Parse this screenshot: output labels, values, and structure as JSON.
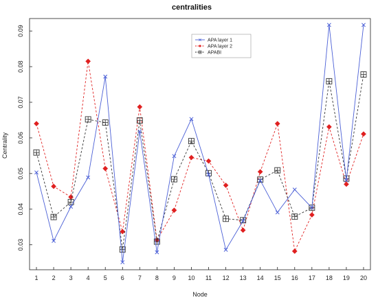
{
  "chart_data": {
    "type": "line",
    "title": "centralities",
    "xlabel": "Node",
    "ylabel": "Centrality",
    "x": [
      1,
      2,
      3,
      4,
      5,
      6,
      7,
      8,
      9,
      10,
      11,
      12,
      13,
      14,
      15,
      16,
      17,
      18,
      19,
      20
    ],
    "x_tick_labels": [
      "1",
      "2",
      "3",
      "4",
      "5",
      "6",
      "7",
      "8",
      "9",
      "10",
      "11",
      "12",
      "13",
      "14",
      "15",
      "16",
      "17",
      "18",
      "19",
      "20"
    ],
    "xlim": [
      0.6,
      20.4
    ],
    "ylim": [
      0.023,
      0.0935
    ],
    "y_ticks": [
      0.03,
      0.04,
      0.05,
      0.06,
      0.07,
      0.08,
      0.09
    ],
    "y_tick_labels": [
      "0.03",
      "0.04",
      "0.05",
      "0.06",
      "0.07",
      "0.08",
      "0.09"
    ],
    "grid": false,
    "legend_position": "top-center",
    "series": [
      {
        "name": "APA layer 1",
        "color": "#4a5fd6",
        "line": "solid",
        "marker": "x",
        "values": [
          0.0503,
          0.0311,
          0.0407,
          0.0489,
          0.0772,
          0.0251,
          0.0618,
          0.0279,
          0.0549,
          0.0653,
          0.0497,
          0.0286,
          0.0367,
          0.0481,
          0.0391,
          0.0455,
          0.0404,
          0.0917,
          0.0481,
          0.0917
        ]
      },
      {
        "name": "APA layer 2",
        "color": "#e02020",
        "line": "dashed",
        "marker": "diamond",
        "values": [
          0.064,
          0.0464,
          0.0434,
          0.0815,
          0.0514,
          0.0337,
          0.0687,
          0.0313,
          0.0397,
          0.0545,
          0.0535,
          0.0467,
          0.0341,
          0.0505,
          0.064,
          0.0282,
          0.0384,
          0.0631,
          0.047,
          0.0611
        ]
      },
      {
        "name": "APABI",
        "color": "#333333",
        "line": "dashed",
        "marker": "boxed-plus",
        "values": [
          0.0559,
          0.0378,
          0.042,
          0.0652,
          0.0643,
          0.0287,
          0.0649,
          0.0309,
          0.0484,
          0.0591,
          0.0501,
          0.0373,
          0.0369,
          0.0483,
          0.0509,
          0.0379,
          0.0404,
          0.0759,
          0.0486,
          0.0778
        ]
      }
    ]
  }
}
